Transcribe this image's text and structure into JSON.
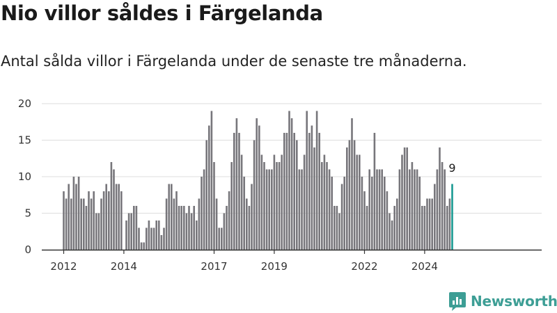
{
  "title": "Nio villor såldes i Färgelanda",
  "subtitle": "Antal sålda villor i Färgelanda under de senaste tre månaderna.",
  "brand": {
    "name": "Newsworthy",
    "color": "#3d9e95",
    "icon": "bar-chart-icon"
  },
  "colors": {
    "bar": "#77767b",
    "highlight": "#1a9a92",
    "grid": "#dddddd",
    "axis": "#333333"
  },
  "chart_data": {
    "type": "bar",
    "xlabel": "",
    "ylabel": "",
    "ylim": [
      0,
      20
    ],
    "yticks": [
      0,
      5,
      10,
      15,
      20
    ],
    "xticks": [
      {
        "label": "2012",
        "x": "2012-01"
      },
      {
        "label": "2014",
        "x": "2014-01"
      },
      {
        "label": "2017",
        "x": "2017-01"
      },
      {
        "label": "2019",
        "x": "2019-01"
      },
      {
        "label": "2022",
        "x": "2022-01"
      },
      {
        "label": "2024",
        "x": "2024-01"
      }
    ],
    "grid": true,
    "annotations": [
      {
        "x": "2024-12",
        "text": "9"
      }
    ],
    "highlight_last": true,
    "series": [
      {
        "start": "2012-01",
        "values": [
          8,
          7,
          9,
          7,
          10,
          9,
          10,
          7,
          7,
          6,
          8,
          7,
          8,
          5,
          5,
          7,
          8,
          9,
          8,
          12,
          11,
          9,
          9,
          8,
          0
        ]
      },
      {
        "start": "2014-02",
        "values": [
          4,
          5,
          5,
          6,
          6,
          3,
          1,
          1,
          3,
          4,
          3,
          3,
          4,
          4,
          2,
          3,
          7,
          9,
          9,
          7,
          8,
          6,
          6,
          6,
          5,
          6,
          5,
          6,
          4,
          7,
          10,
          11,
          15,
          17,
          19,
          12,
          7,
          3,
          3,
          5,
          6,
          8,
          12,
          16,
          18,
          16,
          13,
          10,
          7,
          6,
          9,
          15,
          18,
          17,
          13,
          12,
          11,
          11,
          11,
          13,
          12,
          12,
          13,
          16,
          16,
          19,
          18,
          16,
          15,
          11,
          11,
          13,
          19,
          16,
          17,
          14,
          19,
          16,
          12,
          13,
          12,
          11,
          10,
          6,
          6,
          5,
          9,
          10,
          14,
          15,
          18,
          15,
          13,
          13,
          10,
          8,
          6,
          11,
          10,
          16,
          11,
          11,
          11,
          10,
          8,
          5,
          4,
          6,
          7,
          11,
          13,
          14,
          14,
          11,
          12,
          11,
          11,
          10,
          6,
          6,
          7,
          7,
          7,
          9,
          11,
          14,
          12,
          11,
          6,
          7,
          9
        ]
      }
    ]
  }
}
